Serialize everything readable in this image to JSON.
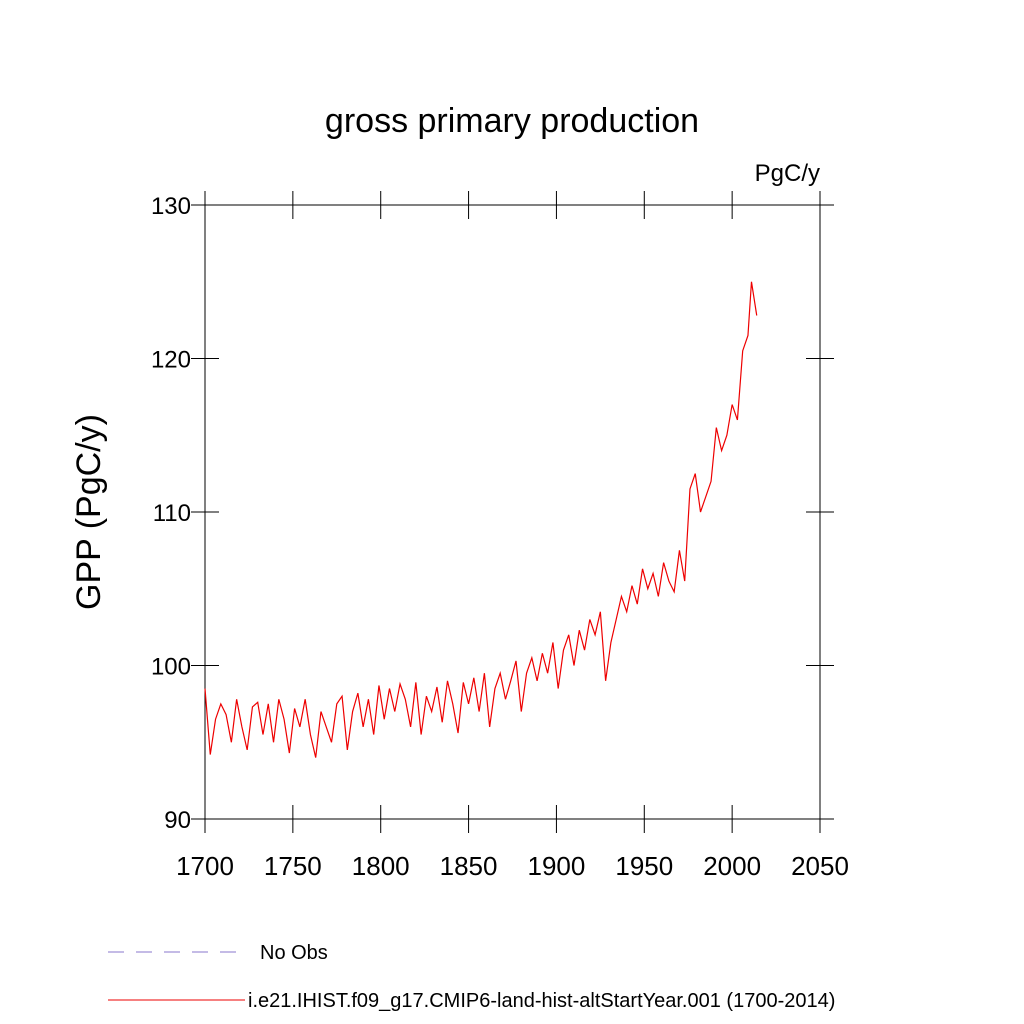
{
  "chart_data": {
    "type": "line",
    "title": "gross primary production",
    "annotation": "PgC/y",
    "ylabel": "GPP  (PgC/y)",
    "x": [
      1700,
      1703,
      1706,
      1709,
      1712,
      1715,
      1718,
      1721,
      1724,
      1727,
      1730,
      1733,
      1736,
      1739,
      1742,
      1745,
      1748,
      1751,
      1754,
      1757,
      1760,
      1763,
      1766,
      1769,
      1772,
      1775,
      1778,
      1781,
      1784,
      1787,
      1790,
      1793,
      1796,
      1799,
      1802,
      1805,
      1808,
      1811,
      1814,
      1817,
      1820,
      1823,
      1826,
      1829,
      1832,
      1835,
      1838,
      1841,
      1844,
      1847,
      1850,
      1853,
      1856,
      1859,
      1862,
      1865,
      1868,
      1871,
      1874,
      1877,
      1880,
      1883,
      1886,
      1889,
      1892,
      1895,
      1898,
      1901,
      1904,
      1907,
      1910,
      1913,
      1916,
      1919,
      1922,
      1925,
      1928,
      1931,
      1934,
      1937,
      1940,
      1943,
      1946,
      1949,
      1952,
      1955,
      1958,
      1961,
      1964,
      1967,
      1970,
      1973,
      1976,
      1979,
      1982,
      1985,
      1988,
      1991,
      1994,
      1997,
      2000,
      2003,
      2006,
      2009,
      2011,
      2014
    ],
    "series": [
      {
        "name": "No Obs",
        "color": "#8877cc",
        "dash": true,
        "values": [
          null,
          null,
          null,
          null,
          null,
          null,
          null,
          null,
          null,
          null,
          null,
          null,
          null,
          null,
          null,
          null,
          null,
          null,
          null,
          null,
          null,
          null,
          null,
          null,
          null,
          null,
          null,
          null,
          null,
          null,
          null,
          null,
          null,
          null,
          null,
          null,
          null,
          null,
          null,
          null,
          null,
          null,
          null,
          null,
          null,
          null,
          null,
          null,
          null,
          null,
          null,
          null,
          null,
          null,
          null,
          null,
          null,
          null,
          null,
          null,
          null,
          null,
          null,
          null,
          null,
          null,
          null,
          null,
          null,
          null,
          null,
          null,
          null,
          null,
          null,
          null,
          null,
          null,
          null,
          null,
          null,
          null,
          null,
          null,
          null,
          null,
          null,
          null,
          null,
          null,
          null,
          null,
          null,
          null,
          null,
          null,
          null,
          null,
          null,
          null,
          null,
          null,
          null,
          null,
          null,
          null
        ]
      },
      {
        "name": "i.e21.IHIST.f09_g17.CMIP6-land-hist-altStartYear.001 (1700-2014)",
        "color": "#ee0000",
        "dash": false,
        "values": [
          98.5,
          94.2,
          96.5,
          97.5,
          96.8,
          95.0,
          97.8,
          96.0,
          94.5,
          97.3,
          97.6,
          95.5,
          97.5,
          95.0,
          97.8,
          96.5,
          94.3,
          97.2,
          96.0,
          97.8,
          95.5,
          94.0,
          97.0,
          96.0,
          95.0,
          97.5,
          98.0,
          94.5,
          97.0,
          98.2,
          96.0,
          97.8,
          95.5,
          98.7,
          96.5,
          98.5,
          97.0,
          98.8,
          97.8,
          96.0,
          98.9,
          95.5,
          98.0,
          97.0,
          98.6,
          96.3,
          99.0,
          97.5,
          95.6,
          98.9,
          97.5,
          99.2,
          97.0,
          99.5,
          96.0,
          98.5,
          99.5,
          97.8,
          99.0,
          100.3,
          97.0,
          99.5,
          100.5,
          99.0,
          100.8,
          99.5,
          101.5,
          98.5,
          101.0,
          102.0,
          100.0,
          102.3,
          101.0,
          103.0,
          102.0,
          103.5,
          99.0,
          101.5,
          103.0,
          104.5,
          103.5,
          105.2,
          104.0,
          106.3,
          105.0,
          106.0,
          104.5,
          106.7,
          105.5,
          104.8,
          107.5,
          105.5,
          111.5,
          112.5,
          110.0,
          111.0,
          112.0,
          115.5,
          114.0,
          115.0,
          117.0,
          116.0,
          120.5,
          121.5,
          125.0,
          122.8
        ]
      }
    ],
    "xlim": [
      1700,
      2050
    ],
    "xticks": [
      1700,
      1750,
      1800,
      1850,
      1900,
      1950,
      2000,
      2050
    ],
    "ylim": [
      90,
      130
    ],
    "yticks": [
      90,
      100,
      110,
      120,
      130
    ],
    "grid": false
  }
}
